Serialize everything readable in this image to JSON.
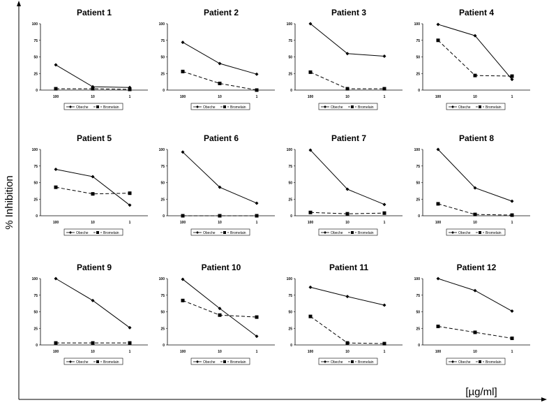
{
  "chart_data": {
    "type": "line",
    "ylabel": "% Inhibition",
    "xlabel": "[µg/ml]",
    "categories": [
      "100",
      "10",
      "1"
    ],
    "yticks": [
      "0",
      "25",
      "50",
      "75",
      "100"
    ],
    "ylim": [
      0,
      100
    ],
    "legend_labels": [
      "Obeche",
      "Bromelain"
    ],
    "legend_placement": "bottom",
    "colors": {
      "line": "#000000",
      "axis": "#000000"
    },
    "panels": [
      {
        "title": "Patient 1",
        "series": [
          {
            "name": "Obeche",
            "values": [
              38,
              5,
              4
            ]
          },
          {
            "name": "Bromelain",
            "values": [
              2,
              2,
              1
            ]
          }
        ]
      },
      {
        "title": "Patient 2",
        "series": [
          {
            "name": "Obeche",
            "values": [
              72,
              40,
              24
            ]
          },
          {
            "name": "Bromelain",
            "values": [
              28,
              10,
              0
            ]
          }
        ]
      },
      {
        "title": "Patient 3",
        "series": [
          {
            "name": "Obeche",
            "values": [
              100,
              55,
              51
            ]
          },
          {
            "name": "Bromelain",
            "values": [
              27,
              2,
              2
            ]
          }
        ]
      },
      {
        "title": "Patient 4",
        "series": [
          {
            "name": "Obeche",
            "values": [
              99,
              82,
              16
            ]
          },
          {
            "name": "Bromelain",
            "values": [
              75,
              22,
              21
            ]
          }
        ]
      },
      {
        "title": "Patient 5",
        "series": [
          {
            "name": "Obeche",
            "values": [
              70,
              59,
              16
            ]
          },
          {
            "name": "Bromelain",
            "values": [
              43,
              33,
              34
            ]
          }
        ]
      },
      {
        "title": "Patient 6",
        "series": [
          {
            "name": "Obeche",
            "values": [
              96,
              43,
              19
            ]
          },
          {
            "name": "Bromelain",
            "values": [
              0,
              0,
              0
            ]
          }
        ]
      },
      {
        "title": "Patient 7",
        "series": [
          {
            "name": "Obeche",
            "values": [
              99,
              40,
              17
            ]
          },
          {
            "name": "Bromelain",
            "values": [
              5,
              3,
              4
            ]
          }
        ]
      },
      {
        "title": "Patient 8",
        "series": [
          {
            "name": "Obeche",
            "values": [
              100,
              42,
              22
            ]
          },
          {
            "name": "Bromelain",
            "values": [
              18,
              2,
              1
            ]
          }
        ]
      },
      {
        "title": "Patient 9",
        "series": [
          {
            "name": "Obeche",
            "values": [
              100,
              67,
              26
            ]
          },
          {
            "name": "Bromelain",
            "values": [
              3,
              3,
              3
            ]
          }
        ]
      },
      {
        "title": "Patient 10",
        "series": [
          {
            "name": "Obeche",
            "values": [
              99,
              55,
              13
            ]
          },
          {
            "name": "Bromelain",
            "values": [
              67,
              45,
              42
            ]
          }
        ]
      },
      {
        "title": "Patient 11",
        "series": [
          {
            "name": "Obeche",
            "values": [
              87,
              73,
              60
            ]
          },
          {
            "name": "Bromelain",
            "values": [
              43,
              3,
              2
            ]
          }
        ]
      },
      {
        "title": "Patient 12",
        "series": [
          {
            "name": "Obeche",
            "values": [
              100,
              82,
              51
            ]
          },
          {
            "name": "Bromelain",
            "values": [
              28,
              19,
              10
            ]
          }
        ]
      }
    ]
  }
}
